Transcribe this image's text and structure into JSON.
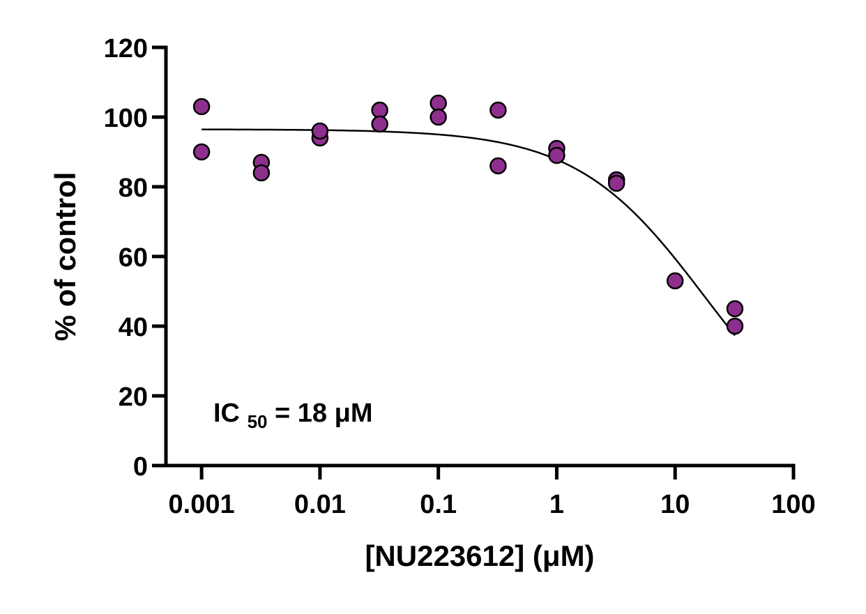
{
  "chart_data": {
    "type": "scatter",
    "title": "",
    "xlabel": "[NU223612] (μM)",
    "ylabel": "% of control",
    "xscale": "log",
    "xlim": [
      0.0005,
      100
    ],
    "ylim": [
      0,
      120
    ],
    "x_ticks": [
      {
        "value": 0.001,
        "label": "0.001"
      },
      {
        "value": 0.01,
        "label": "0.01"
      },
      {
        "value": 0.1,
        "label": "0.1"
      },
      {
        "value": 1,
        "label": "1"
      },
      {
        "value": 10,
        "label": "10"
      },
      {
        "value": 100,
        "label": "100"
      }
    ],
    "y_ticks": [
      {
        "value": 0,
        "label": "0"
      },
      {
        "value": 20,
        "label": "20"
      },
      {
        "value": 40,
        "label": "40"
      },
      {
        "value": 60,
        "label": "60"
      },
      {
        "value": 80,
        "label": "80"
      },
      {
        "value": 100,
        "label": "100"
      },
      {
        "value": 120,
        "label": "120"
      }
    ],
    "grid": false,
    "legend": "none",
    "marker_color": "#8E2F8E",
    "curve_color": "#000000",
    "points": [
      {
        "x": 0.001,
        "y": 103
      },
      {
        "x": 0.001,
        "y": 90
      },
      {
        "x": 0.0032,
        "y": 87
      },
      {
        "x": 0.0032,
        "y": 84
      },
      {
        "x": 0.01,
        "y": 94
      },
      {
        "x": 0.01,
        "y": 96
      },
      {
        "x": 0.032,
        "y": 102
      },
      {
        "x": 0.032,
        "y": 98
      },
      {
        "x": 0.1,
        "y": 104
      },
      {
        "x": 0.1,
        "y": 100
      },
      {
        "x": 0.32,
        "y": 102
      },
      {
        "x": 0.32,
        "y": 86
      },
      {
        "x": 1,
        "y": 91
      },
      {
        "x": 1,
        "y": 89
      },
      {
        "x": 3.2,
        "y": 82
      },
      {
        "x": 3.2,
        "y": 81
      },
      {
        "x": 10,
        "y": 53
      },
      {
        "x": 32,
        "y": 45
      },
      {
        "x": 32,
        "y": 40
      }
    ],
    "fit": {
      "model": "four-parameter logistic",
      "top": 96.5,
      "bottom": 0,
      "ic50": 18,
      "hill": 0.8,
      "x_range": [
        0.001,
        32
      ]
    },
    "annotation": {
      "ic_prefix": "IC",
      "ic_subscript": "50",
      "ic_value": " = 18 μM"
    }
  }
}
